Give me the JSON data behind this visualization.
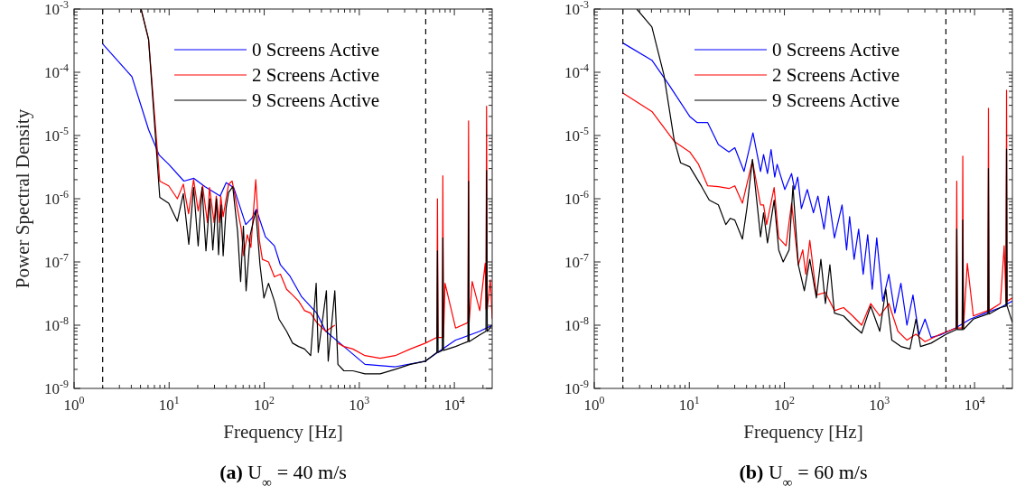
{
  "chart_data": [
    {
      "type": "line",
      "title": "(a) U$_{∞}$ = 40 m/s",
      "xlabel": "Frequency [Hz]",
      "ylabel": "Power Spectral Density",
      "log": "xy",
      "grid": false,
      "legend": "top right",
      "line_style": "solid",
      "marker": "none",
      "xlim": [
        1,
        25000
      ],
      "xticks": [
        {
          "value": 1,
          "label": "10$^{0}$"
        },
        {
          "value": 10,
          "label": "10$^{1}$"
        },
        {
          "value": 100,
          "label": "10$^{2}$"
        },
        {
          "value": 1000,
          "label": "10$^{3}$"
        },
        {
          "value": 10000,
          "label": "10$^{4}$"
        }
      ],
      "ylim": [
        1e-09,
        0.001
      ],
      "yticks": [
        {
          "value": 1e-09,
          "label": "10$^{-9}$"
        },
        {
          "value": 1e-08,
          "label": "10$^{-8}$"
        },
        {
          "value": 1e-07,
          "label": "10$^{-7}$"
        },
        {
          "value": 1e-06,
          "label": "10$^{-6}$"
        },
        {
          "value": 1e-05,
          "label": "10$^{-5}$"
        },
        {
          "value": 0.0001,
          "label": "10$^{-4}$"
        },
        {
          "value": 0.001,
          "label": "10$^{-3}$"
        }
      ],
      "ref_lines": [
        {
          "axis": "x",
          "value": 2,
          "color": "#000000",
          "line_style": "dashed"
        },
        {
          "axis": "x",
          "value": 5000,
          "color": "#000000",
          "line_style": "dashed"
        }
      ],
      "series": [
        {
          "name": "0 Screens Active",
          "color": "#0000ff",
          "x": [
            2,
            4.06,
            6.08,
            7.86,
            9.9,
            14.3,
            18.2,
            23.9,
            34.4,
            39.8,
            47.8,
            64,
            74.1,
            82.6,
            103,
            128,
            148,
            185,
            248,
            357,
            444,
            689,
            1148,
            2387,
            4959,
            6640,
            10300,
            18500,
            25000
          ],
          "values": [
            0.00028,
            8.5e-05,
            1.24e-05,
            4.9e-06,
            3.5e-06,
            1.9e-06,
            2.1e-06,
            1.55e-06,
            1.1e-06,
            1.8e-06,
            1.5e-06,
            3.9e-07,
            4.9e-07,
            6.8e-07,
            2.5e-07,
            1.8e-07,
            9e-08,
            6.1e-08,
            2.8e-08,
            1.55e-08,
            8e-09,
            4.6e-09,
            2.4e-09,
            2.2e-09,
            2.7e-09,
            3.7e-09,
            5.8e-09,
            8e-09,
            1e-08
          ]
        },
        {
          "name": "2 Screens Active",
          "color": "#ff0000",
          "x": [
            5.07,
            6.08,
            7.97,
            9.9,
            12.2,
            14.1,
            16,
            18.1,
            20.2,
            22.5,
            25.3,
            26.6,
            29.7,
            31.3,
            33.9,
            34.9,
            37,
            42.2,
            46,
            51.4,
            57.4,
            60.8,
            66.4,
            72.4,
            81.5,
            89,
            95.7,
            111,
            128,
            148,
            172,
            199,
            230,
            266,
            308,
            357,
            444,
            553,
            574,
            596,
            689,
            857,
            1148,
            1656,
            2387,
            3441,
            4959,
            6545,
            6640,
            6740,
            7470,
            7570,
            7690,
            7980,
            10300,
            13900,
            14100,
            14300,
            15400,
            18500,
            21100,
            21500,
            21800,
            22200,
            23900,
            25000
          ],
          "values": [
            0.001,
            0.00033,
            1.9e-06,
            1.6e-06,
            1e-06,
            1.7e-06,
            5.8e-07,
            2e-06,
            6.4e-07,
            1.6e-06,
            4.2e-07,
            1.5e-06,
            4.2e-07,
            1.1e-06,
            4.2e-07,
            1.1e-06,
            5.2e-07,
            1.7e-06,
            1.9e-06,
            8e-07,
            3.3e-07,
            1.25e-07,
            2.7e-07,
            1.7e-07,
            2e-06,
            2.2e-07,
            1.1e-07,
            1e-07,
            5.8e-08,
            6.4e-08,
            3.7e-08,
            3e-08,
            2.4e-08,
            1.7e-08,
            1.55e-08,
            1.1e-08,
            8e-09,
            1e-08,
            null,
            5.2e-09,
            4.6e-09,
            4.2e-09,
            3.3e-09,
            3e-09,
            3.3e-09,
            4.2e-09,
            5.2e-09,
            6.4e-09,
            1e-06,
            6.4e-09,
            6.4e-09,
            2.3e-06,
            6.4e-09,
            4.6e-08,
            9e-09,
            1.1e-08,
            1.7e-05,
            1.1e-08,
            4.9e-08,
            1.7e-08,
            9.5e-08,
            1.8e-08,
            2.9e-05,
            1.8e-08,
            5.2e-08,
            1.25e-08
          ]
        },
        {
          "name": "9 Screens Active",
          "color": "#000000",
          "x": [
            5.07,
            6.08,
            7.97,
            9.9,
            12.2,
            14.1,
            16.1,
            18.1,
            20.2,
            22.2,
            24.4,
            26.8,
            28.8,
            31.5,
            33.1,
            35.2,
            37,
            39.8,
            42.2,
            46.7,
            52.5,
            56.5,
            60.4,
            64.5,
            71.4,
            81.5,
            90.3,
            99.3,
            111,
            128,
            143,
            172,
            199,
            230,
            266,
            308,
            352,
            370,
            451,
            471,
            553,
            596,
            689,
            857,
            1148,
            1656,
            2387,
            3441,
            4959,
            6545,
            6640,
            6740,
            7470,
            7570,
            7690,
            10300,
            13900,
            14100,
            14300,
            18500,
            21500,
            21800,
            22200,
            25000
          ],
          "values": [
            0.001,
            0.00033,
            1.05e-06,
            8.5e-07,
            4.4e-07,
            1.2e-06,
            1.9e-07,
            1.5e-06,
            1.8e-07,
            1.5e-06,
            1.5e-07,
            1e-06,
            1.55e-07,
            1e-06,
            1.3e-07,
            8e-07,
            1.25e-07,
            7.2e-07,
            1.25e-06,
            1.55e-06,
            3e-07,
            4.9e-08,
            3.7e-07,
            3.5e-08,
            2.7e-07,
            6.4e-07,
            9e-08,
            2.7e-08,
            4.6e-08,
            2.4e-08,
            1.25e-08,
            8e-09,
            5.2e-09,
            4.6e-09,
            4.2e-09,
            3.3e-09,
            4.6e-08,
            3.7e-09,
            3.5e-08,
            2.7e-09,
            3.5e-08,
            2.4e-09,
            1.9e-09,
            1.9e-09,
            1.7e-09,
            1.7e-09,
            2e-09,
            2.4e-09,
            2.7e-09,
            3.7e-09,
            1.5e-07,
            3.7e-09,
            4e-09,
            2.4e-07,
            4e-09,
            4.6e-09,
            5.5e-09,
            1.9e-06,
            5.5e-09,
            7e-09,
            8e-09,
            2.8e-06,
            8e-09,
            1e-08
          ]
        }
      ]
    },
    {
      "type": "line",
      "title": "(b) U$_{∞}$ = 60 m/s",
      "xlabel": "Frequency [Hz]",
      "log": "xy",
      "grid": false,
      "legend": "top right",
      "line_style": "solid",
      "marker": "none",
      "xlim": [
        1,
        25000
      ],
      "xticks": [
        {
          "value": 1,
          "label": "10$^{0}$"
        },
        {
          "value": 10,
          "label": "10$^{1}$"
        },
        {
          "value": 100,
          "label": "10$^{2}$"
        },
        {
          "value": 1000,
          "label": "10$^{3}$"
        },
        {
          "value": 10000,
          "label": "10$^{4}$"
        }
      ],
      "ylim": [
        1e-09,
        0.001
      ],
      "yticks": [
        {
          "value": 1e-09,
          "label": "10$^{-9}$"
        },
        {
          "value": 1e-08,
          "label": "10$^{-8}$"
        },
        {
          "value": 1e-07,
          "label": "10$^{-7}$"
        },
        {
          "value": 1e-06,
          "label": "10$^{-6}$"
        },
        {
          "value": 1e-05,
          "label": "10$^{-5}$"
        },
        {
          "value": 0.0001,
          "label": "10$^{-4}$"
        },
        {
          "value": 0.001,
          "label": "10$^{-3}$"
        }
      ],
      "ref_lines": [
        {
          "axis": "x",
          "value": 2,
          "color": "#000000",
          "line_style": "dashed"
        },
        {
          "axis": "x",
          "value": 5000,
          "color": "#000000",
          "line_style": "dashed"
        }
      ],
      "series": [
        {
          "name": "0 Screens Active",
          "color": "#0000ff",
          "x": [
            2,
            4.04,
            6.04,
            10.1,
            12.1,
            15.6,
            20.2,
            26.1,
            30.1,
            37.6,
            46.7,
            56.1,
            60.4,
            66.4,
            72.4,
            79.1,
            83.9,
            101,
            119,
            128,
            138,
            151,
            174,
            202,
            225,
            261,
            291,
            336,
            404,
            451,
            485,
            541,
            604,
            674,
            752,
            839,
            936,
            1083,
            1254,
            1452,
            1680,
            1945,
            2250,
            2605,
            3013,
            3491,
            4345,
            6270,
            9030,
            13000,
            18700,
            25000
          ],
          "values": [
            0.00029,
            0.000155,
            6.5e-05,
            2e-05,
            1.6e-05,
            1.6e-05,
            7.2e-06,
            5.5e-06,
            6.4e-06,
            2.7e-06,
            1.1e-05,
            2.7e-06,
            5e-06,
            2.5e-06,
            6e-06,
            2.2e-06,
            3.5e-06,
            1.4e-06,
            2.5e-06,
            1.4e-06,
            2.2e-06,
            7e-07,
            1.4e-06,
            6e-07,
            1.1e-06,
            3.3e-07,
            1.1e-06,
            2.4e-07,
            8e-07,
            1.55e-07,
            5.2e-07,
            1.1e-07,
            3.3e-07,
            6.4e-08,
            2.7e-07,
            3.7e-08,
            2.4e-07,
            2.4e-08,
            6.4e-08,
            1.55e-08,
            4.6e-08,
            1e-08,
            3e-08,
            7e-09,
            1.25e-08,
            6.4e-09,
            7e-09,
            9e-09,
            1.25e-08,
            1.55e-08,
            1.9e-08,
            2.4e-08
          ]
        },
        {
          "name": "2 Screens Active",
          "color": "#ff0000",
          "x": [
            2,
            4.04,
            6.99,
            10.1,
            12.5,
            15.6,
            20.2,
            26.1,
            30.1,
            36.2,
            46.1,
            56.1,
            60.4,
            65,
            78,
            87.1,
            104,
            119,
            140,
            156,
            168,
            185,
            217,
            270,
            336,
            419,
            522,
            650,
            809,
            1007,
            1254,
            1563,
            1945,
            2421,
            3013,
            4345,
            6400,
            6500,
            6600,
            7410,
            7520,
            7640,
            8390,
            9710,
            13800,
            14000,
            14200,
            18700,
            20500,
            21400,
            21700,
            22000,
            25000
          ],
          "values": [
            4.7e-05,
            2.4e-05,
            8e-06,
            5.5e-06,
            3.5e-06,
            1.6e-06,
            1.55e-06,
            1.45e-06,
            1.6e-06,
            8.5e-07,
            4e-06,
            8e-07,
            8e-07,
            3.9e-07,
            1.5e-06,
            2.4e-07,
            1.8e-07,
            8.5e-07,
            9e-08,
            1.55e-07,
            6.4e-08,
            2.2e-07,
            3e-08,
            3.3e-08,
            1.7e-08,
            1.9e-08,
            1.4e-08,
            1e-08,
            2.2e-08,
            1.4e-08,
            2.2e-08,
            8e-09,
            5.8e-09,
            7.2e-09,
            5.5e-09,
            7.2e-09,
            9e-09,
            1.9e-06,
            9e-09,
            9e-09,
            4.7e-06,
            9e-09,
            9.5e-08,
            1.4e-08,
            1.7e-08,
            2.7e-05,
            1.7e-08,
            2.2e-08,
            1.8e-07,
            2.4e-08,
            5.2e-05,
            2.4e-08,
            2.7e-08
          ]
        },
        {
          "name": "9 Screens Active",
          "color": "#000000",
          "x": [
            2.8,
            4.04,
            5.41,
            6.89,
            8.09,
            10.1,
            13.5,
            16.2,
            20.2,
            24.2,
            27,
            30.1,
            36.2,
            40.4,
            46.1,
            56.1,
            60.4,
            66.4,
            78,
            87.1,
            97.1,
            112,
            123,
            140,
            162,
            185,
            217,
            242,
            270,
            301,
            336,
            419,
            522,
            650,
            809,
            1007,
            1166,
            1349,
            1680,
            2093,
            2421,
            2703,
            3491,
            5033,
            6400,
            6500,
            6600,
            7410,
            7520,
            7640,
            9710,
            13800,
            14000,
            14200,
            18700,
            21400,
            21700,
            22000,
            25000
          ],
          "values": [
            0.001,
            0.00052,
            9e-05,
            8.9e-06,
            3.7e-06,
            3.2e-06,
            1.55e-06,
            9.5e-07,
            8e-07,
            3.9e-07,
            4.9e-07,
            4.6e-07,
            2.3e-07,
            7.2e-07,
            4.2e-06,
            2.5e-07,
            6e-07,
            2e-07,
            9.5e-07,
            1.55e-07,
            1e-07,
            1.55e-07,
            1.6e-06,
            9e-08,
            3.5e-08,
            1.1e-07,
            2.7e-08,
            1.1e-07,
            2.2e-08,
            9e-08,
            1.55e-08,
            1.4e-08,
            1e-08,
            7.5e-09,
            2e-08,
            8e-09,
            3.7e-08,
            5.8e-09,
            4.6e-09,
            4.2e-09,
            1.25e-08,
            4.6e-09,
            5.2e-09,
            7.2e-09,
            8.5e-09,
            3.3e-07,
            8.5e-09,
            8.5e-09,
            4.6e-07,
            8.5e-09,
            1.25e-08,
            1.5e-08,
            3e-06,
            1.5e-08,
            1.9e-08,
            2e-08,
            6.1e-06,
            2e-08,
            1.1e-08
          ]
        }
      ]
    }
  ]
}
